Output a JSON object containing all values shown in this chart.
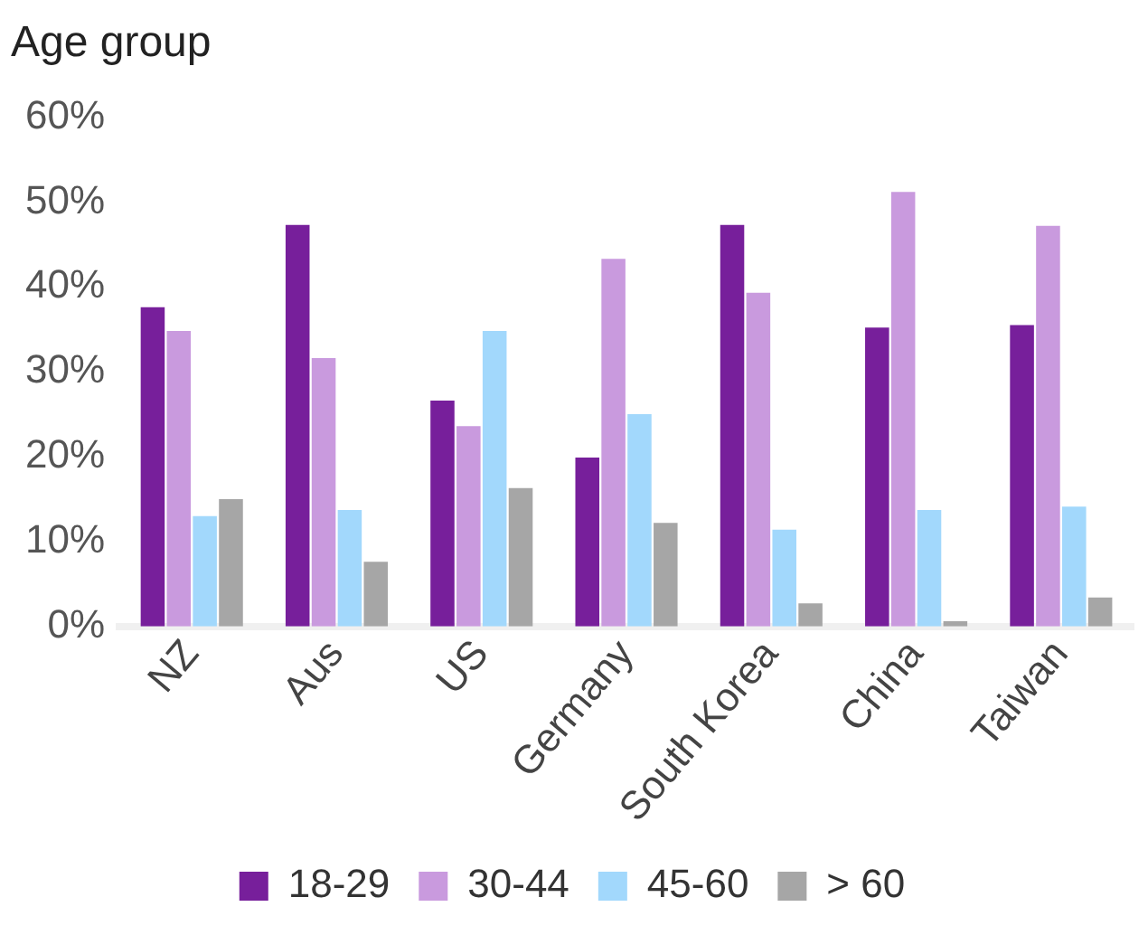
{
  "chart_data": {
    "type": "bar",
    "title": "Age group",
    "categories": [
      "NZ",
      "Aus",
      "US",
      "Germany",
      "South Korea",
      "China",
      "Taiwan"
    ],
    "series": [
      {
        "name": "18-29",
        "color": "#771f9b",
        "values": [
          37.6,
          47.3,
          26.6,
          19.9,
          47.3,
          35.2,
          35.5
        ]
      },
      {
        "name": "30-44",
        "color": "#c99ade",
        "values": [
          34.8,
          31.6,
          23.6,
          43.3,
          39.3,
          51.2,
          47.2
        ]
      },
      {
        "name": "45-60",
        "color": "#a2d8fc",
        "values": [
          13.0,
          13.7,
          34.8,
          25.0,
          11.4,
          13.7,
          14.1
        ]
      },
      {
        "name": "> 60",
        "color": "#a6a6a6",
        "values": [
          15.0,
          7.6,
          16.3,
          12.2,
          2.7,
          0.6,
          3.4
        ]
      }
    ],
    "ylim": [
      0,
      60
    ],
    "yticks": [
      {
        "value": 0,
        "label": "0%"
      },
      {
        "value": 10,
        "label": "10%"
      },
      {
        "value": 20,
        "label": "20%"
      },
      {
        "value": 30,
        "label": "30%"
      },
      {
        "value": 40,
        "label": "40%"
      },
      {
        "value": 50,
        "label": "50%"
      },
      {
        "value": 60,
        "label": "60%"
      }
    ],
    "grid": false,
    "legend": "bottom"
  }
}
